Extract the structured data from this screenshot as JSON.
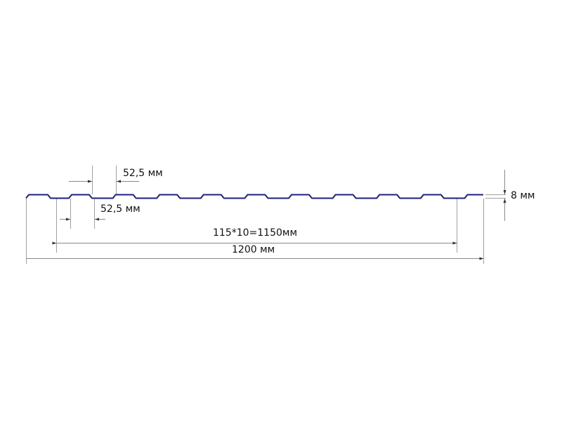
{
  "diagram": {
    "profile_color": "#1f1f7a",
    "dimension_color": "#9a9a9a",
    "labels": {
      "top_pitch": "52,5 мм",
      "bottom_pitch": "52,5 мм",
      "height": "8 мм",
      "working_width": "115*10=1150мм",
      "total_width": "1200 мм"
    }
  }
}
